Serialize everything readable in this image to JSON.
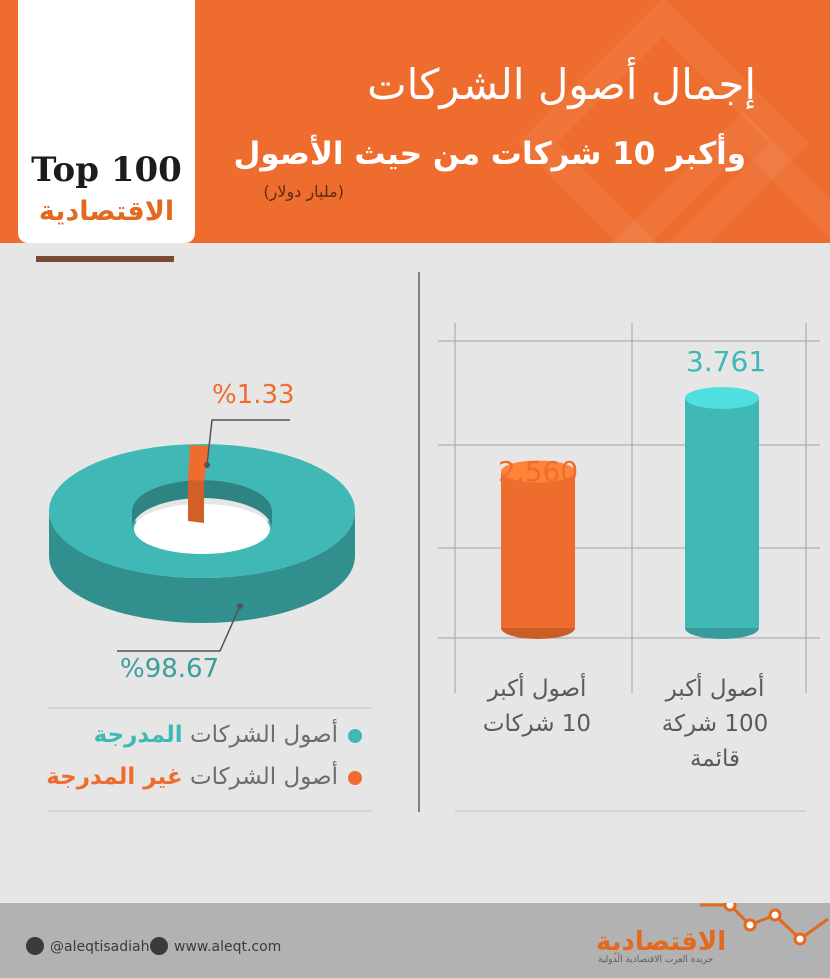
{
  "header": {
    "title_line1": "إجمال أصول الشركات",
    "title_line2": "وأكبر 10 شركات من حيث الأصول",
    "unit": "(مليار دولار)"
  },
  "badge": {
    "top": "Top 100",
    "name": "الاقتصادية"
  },
  "colors": {
    "orange": "#ee6c2d",
    "teal": "#3fb8b6",
    "text_gray": "#6d6d6d"
  },
  "chart_data": [
    {
      "type": "pie",
      "style": "3d-donut",
      "slices": [
        {
          "label": "أصول الشركات المدرجة",
          "value": 98.67,
          "display": "%98.67",
          "color": "#3fb8b6"
        },
        {
          "label": "أصول الشركات غير المدرجة",
          "value": 1.33,
          "display": "%1.33",
          "color": "#ee6c2d"
        }
      ]
    },
    {
      "type": "bar",
      "style": "3d-cylinder",
      "categories": [
        "أصول أكبر 100 شركة قائمة",
        "أصول أكبر 10 شركات"
      ],
      "values": [
        3.761,
        2.56
      ],
      "value_labels": [
        "3.761",
        "2.560"
      ],
      "colors": [
        "#3fb8b6",
        "#ee6c2d"
      ],
      "grid": true
    }
  ],
  "bars": {
    "top100_label": "3.761",
    "top10_label": "2.560",
    "top100_cat_lines": [
      "أصول أكبر",
      "100 شركة",
      "قائمة"
    ],
    "top10_cat_lines": [
      "أصول أكبر",
      "10 شركات"
    ]
  },
  "donut": {
    "listed_pct": "%98.67",
    "unlisted_pct": "%1.33"
  },
  "legend": {
    "listed_prefix": "أصول الشركات ",
    "listed_bold": "المدرجة",
    "unlisted_prefix": "أصول الشركات ",
    "unlisted_bold": "غير المدرجة"
  },
  "footer": {
    "twitter": "@aleqtisadiah",
    "website": "www.aleqt.com",
    "brand": "الاقتصادية",
    "brand_tagline": "جريدة العرب الاقتصادية الدولية"
  }
}
